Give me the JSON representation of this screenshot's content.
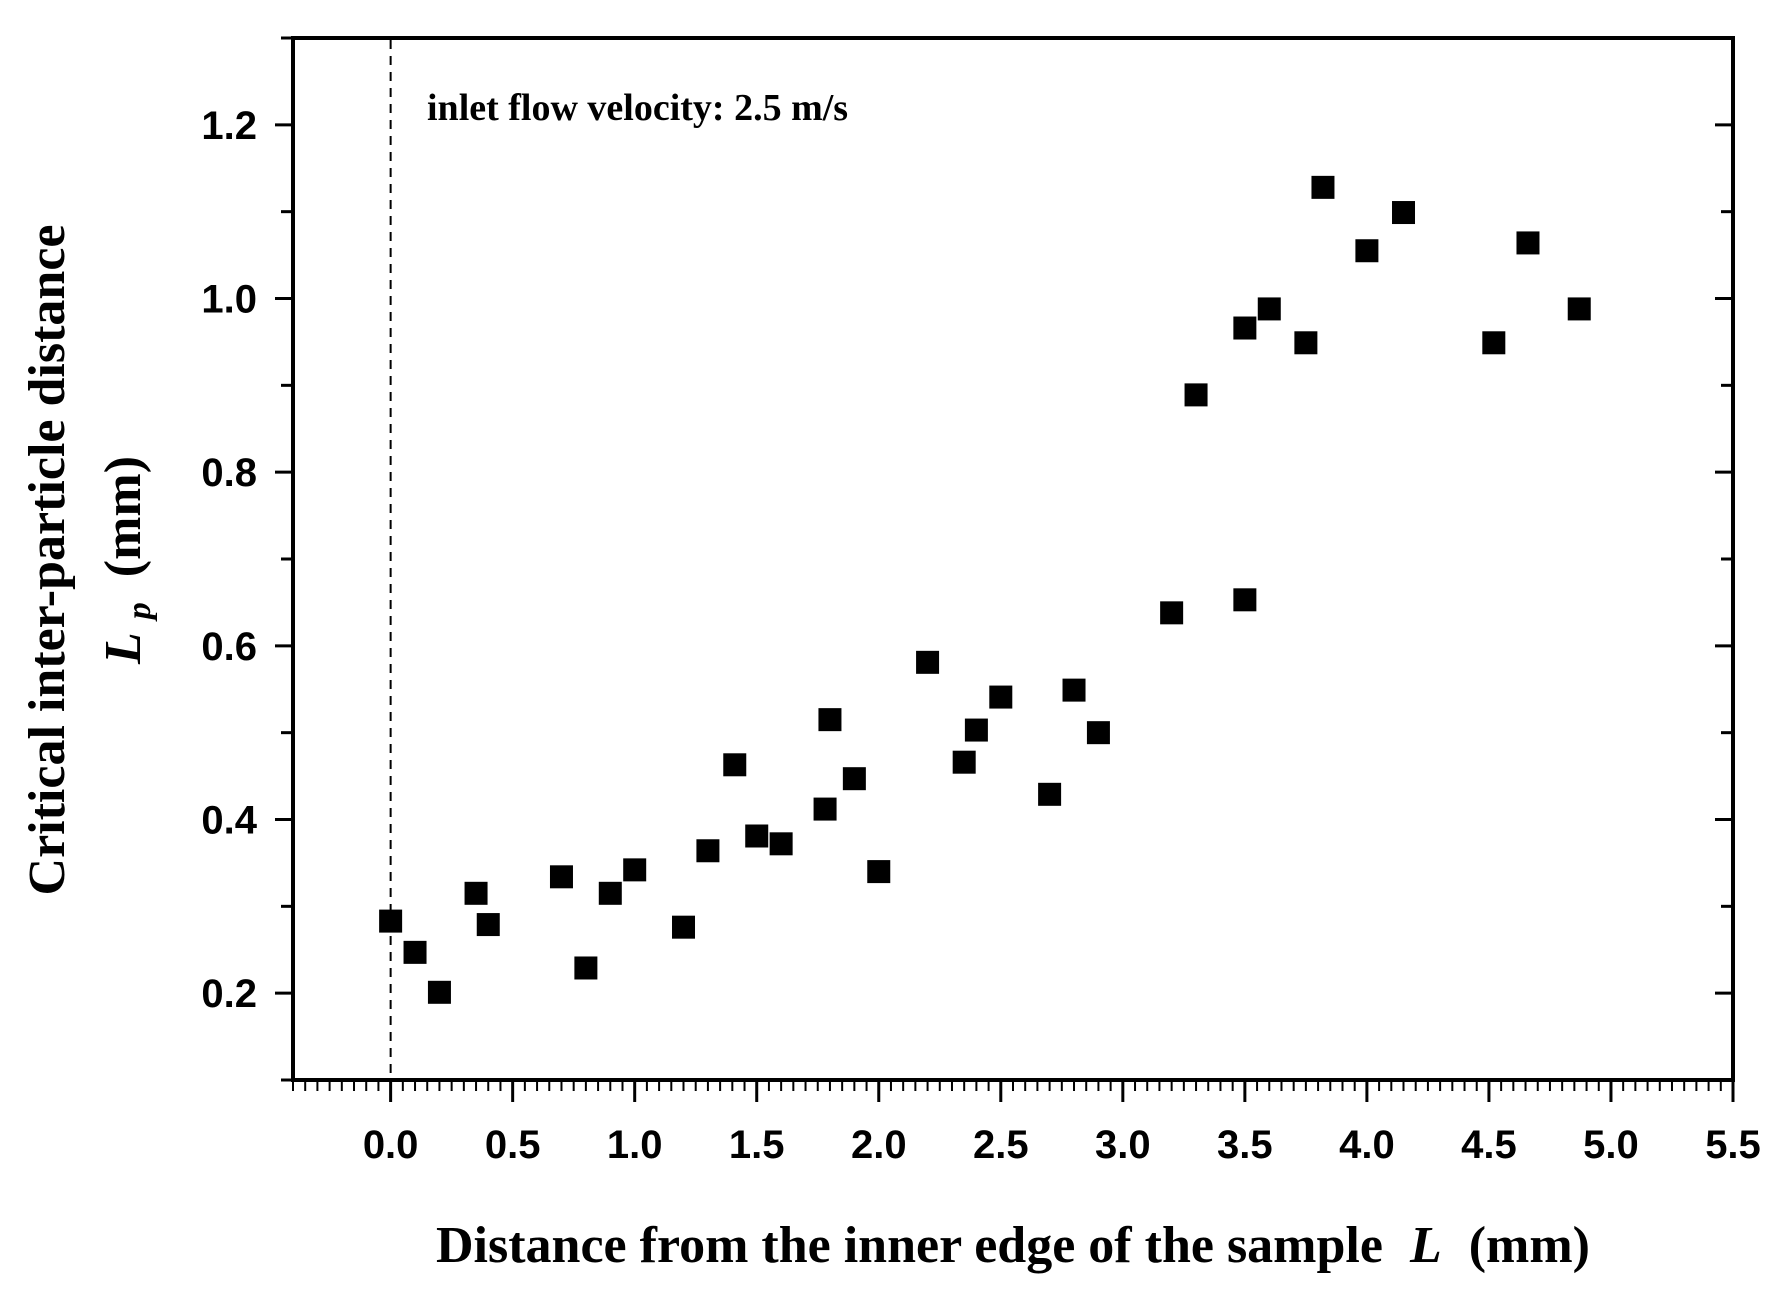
{
  "chart_data": {
    "type": "scatter",
    "title": "",
    "xlabel": "Distance from the inner edge of the sample",
    "xlabel_var": "L",
    "xlabel_unit": "(mm)",
    "ylabel_line1": "Critical inter-particle distance",
    "ylabel_var": "L",
    "ylabel_sub": "p",
    "ylabel_unit": "(mm)",
    "annotation": "inlet flow velocity: 2.5 m/s",
    "xlim": [
      -0.4,
      5.5
    ],
    "ylim": [
      0.1,
      1.3
    ],
    "xticks": [
      "0.0",
      "0.5",
      "1.0",
      "1.5",
      "2.0",
      "2.5",
      "3.0",
      "3.5",
      "4.0",
      "4.5",
      "5.0",
      "5.5"
    ],
    "yticks": [
      "0.2",
      "0.4",
      "0.6",
      "0.8",
      "1.0",
      "1.2"
    ],
    "marker": "square",
    "marker_color": "#000000",
    "reference_line_x": 0.0,
    "series": [
      {
        "name": "inlet flow velocity 2.5 m/s",
        "points": [
          [
            0.0,
            0.283
          ],
          [
            0.1,
            0.247
          ],
          [
            0.2,
            0.201
          ],
          [
            0.35,
            0.315
          ],
          [
            0.4,
            0.279
          ],
          [
            0.7,
            0.334
          ],
          [
            0.8,
            0.229
          ],
          [
            0.9,
            0.315
          ],
          [
            1.0,
            0.342
          ],
          [
            1.2,
            0.276
          ],
          [
            1.3,
            0.364
          ],
          [
            1.41,
            0.463
          ],
          [
            1.5,
            0.381
          ],
          [
            1.6,
            0.372
          ],
          [
            1.78,
            0.412
          ],
          [
            1.8,
            0.515
          ],
          [
            1.9,
            0.447
          ],
          [
            2.0,
            0.34
          ],
          [
            2.2,
            0.581
          ],
          [
            2.35,
            0.466
          ],
          [
            2.4,
            0.503
          ],
          [
            2.5,
            0.541
          ],
          [
            2.7,
            0.429
          ],
          [
            2.8,
            0.549
          ],
          [
            2.9,
            0.5
          ],
          [
            3.2,
            0.638
          ],
          [
            3.3,
            0.889
          ],
          [
            3.5,
            0.653
          ],
          [
            3.5,
            0.966
          ],
          [
            3.6,
            0.988
          ],
          [
            3.75,
            0.949
          ],
          [
            3.82,
            1.128
          ],
          [
            4.0,
            1.055
          ],
          [
            4.15,
            1.099
          ],
          [
            4.52,
            0.949
          ],
          [
            4.66,
            1.064
          ],
          [
            4.87,
            0.988
          ]
        ]
      }
    ]
  }
}
